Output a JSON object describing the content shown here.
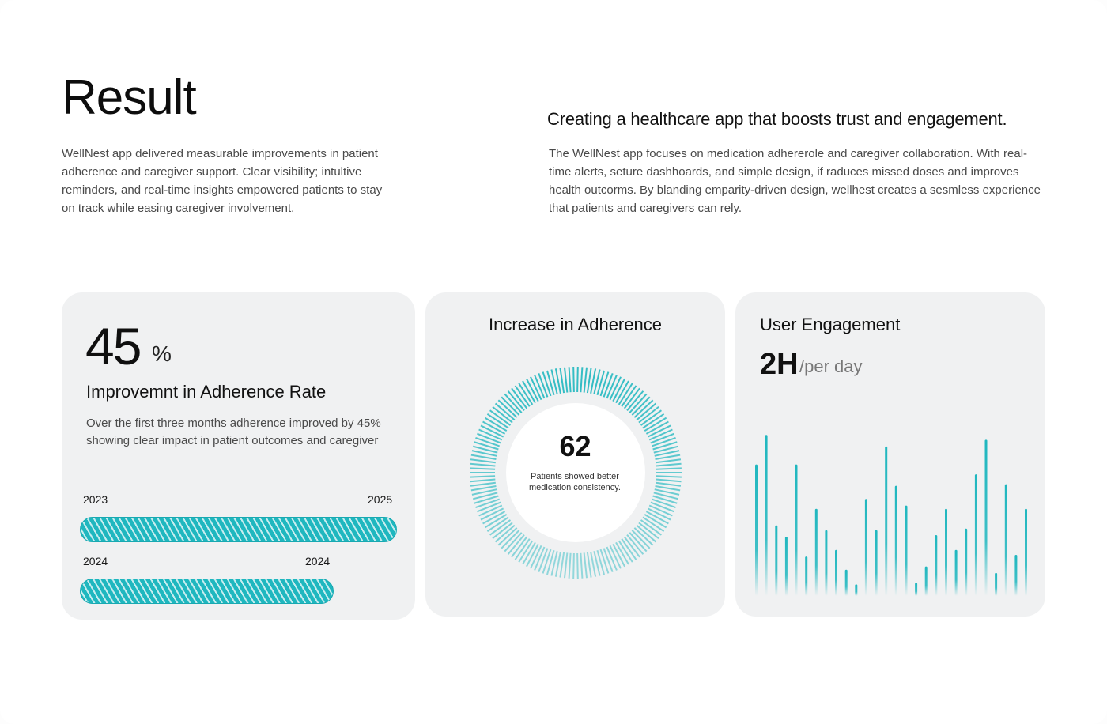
{
  "result": {
    "title": "Result",
    "intro": "WellNest app delivered measurable improvements in patient adherence and caregiver support. Clear visibility; intultive reminders, and real-time insights empowered patients to stay on track while easing caregiver involvement."
  },
  "summary": {
    "headline": "Creating a healthcare app that boosts trust and engagement.",
    "body": "The WellNest app focuses on medication adhererole and caregiver collaboration. With real-time alerts, seture dashhoards, and simple design, if raduces missed doses and improves health outcorms. By blanding emparity-driven design, wellhest creates a sesmless experience that patients and caregivers can rely."
  },
  "adherence_card": {
    "value": "45",
    "unit": "%",
    "title": "Improvemnt in Adherence Rate",
    "description": "Over the first three months adherence improved by 45% showing clear impact in patient outcomes and caregiver",
    "bars": [
      {
        "start_label": "2023",
        "end_label": "2025",
        "fill_fraction": 1.0
      },
      {
        "start_label": "2024",
        "end_label": "2024",
        "fill_fraction": 0.8
      }
    ]
  },
  "ring_card": {
    "title": "Increase in Adherence",
    "value": "62",
    "caption": "Patients showed better medication consistency.",
    "accent": "#1fb7bf"
  },
  "engagement_card": {
    "title": "User Engagement",
    "value": "2H",
    "unit": "/per day",
    "accent": "#1fb7bf",
    "chart_data": {
      "type": "bar",
      "values": [
        0.8,
        0.98,
        0.43,
        0.36,
        0.8,
        0.24,
        0.53,
        0.4,
        0.28,
        0.16,
        0.07,
        0.59,
        0.4,
        0.91,
        0.67,
        0.55,
        0.08,
        0.18,
        0.37,
        0.53,
        0.28,
        0.41,
        0.74,
        0.95,
        0.14,
        0.68,
        0.25,
        0.53
      ],
      "ylim": [
        0,
        1
      ],
      "title": "",
      "xlabel": "",
      "ylabel": ""
    }
  }
}
